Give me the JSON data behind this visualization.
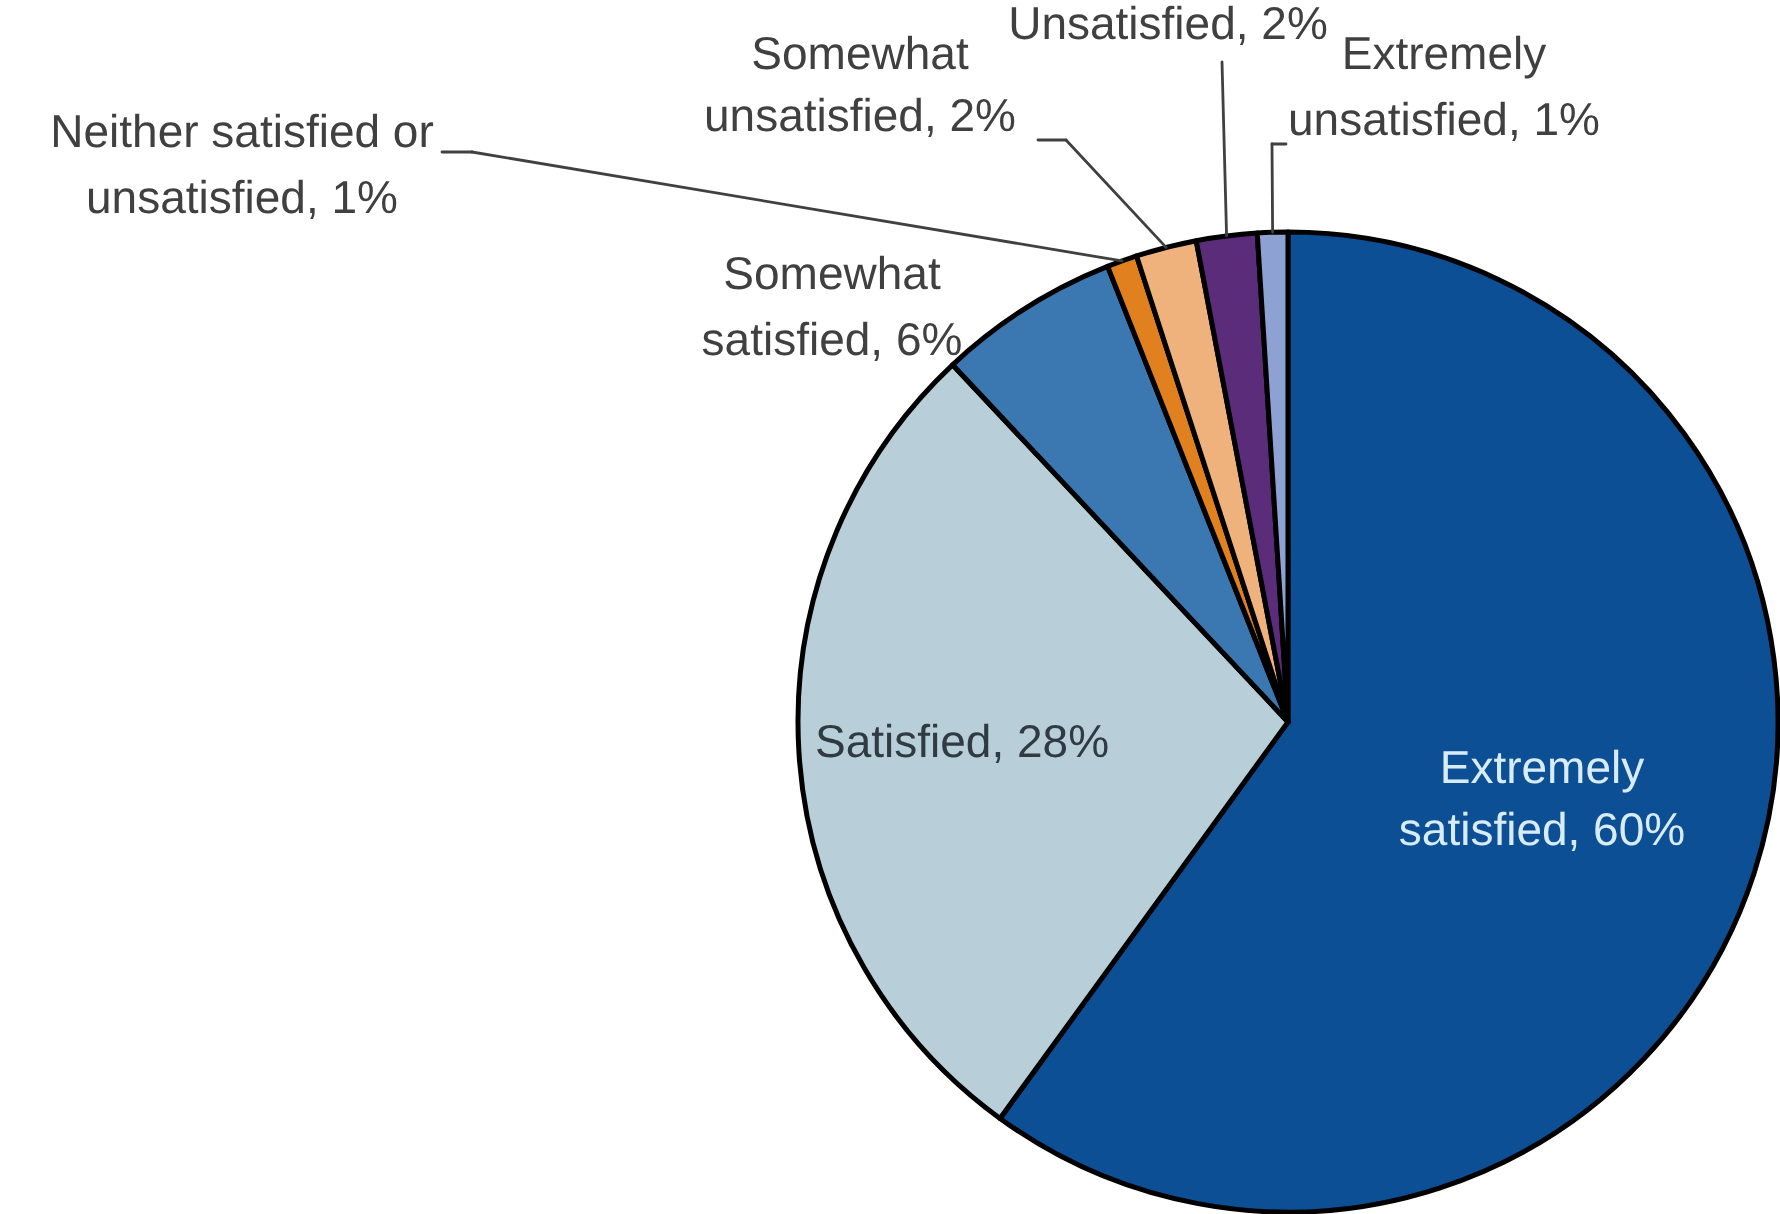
{
  "chart_data": {
    "type": "pie",
    "categories": [
      "Extremely satisfied",
      "Satisfied",
      "Somewhat satisfied",
      "Neither satisfied or unsatisfied",
      "Somewhat unsatisfied",
      "Unsatisfied",
      "Extremely unsatisfied"
    ],
    "values": [
      60,
      28,
      6,
      1,
      2,
      2,
      1
    ],
    "colors": [
      "#0c4f95",
      "#b8cfd9",
      "#3b78b2",
      "#e0801f",
      "#f0b27c",
      "#5b2c7a",
      "#8ea1d3"
    ],
    "value_labels": [
      "60%",
      "28%",
      "6%",
      "1%",
      "2%",
      "2%",
      "1%"
    ]
  }
}
